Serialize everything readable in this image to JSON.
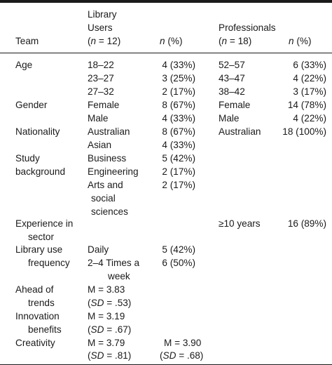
{
  "header": {
    "team": "Team",
    "library_users": [
      "Library",
      "Users"
    ],
    "library_n_open": "(",
    "library_n_italic": "n",
    "library_n_rest": " = 12)",
    "n_pct_italic": "n",
    "n_pct_rest": " (%)",
    "professionals": "Professionals",
    "prof_n_open": "(",
    "prof_n_italic": "n",
    "prof_n_rest": " = 18)",
    "n_pct2_italic": "n",
    "n_pct2_rest": " (%)"
  },
  "rows": {
    "age": {
      "label": "Age",
      "lib": [
        [
          "18–22",
          "4 (33%)"
        ],
        [
          "23–27",
          "3 (25%)"
        ],
        [
          "27–32",
          "2 (17%)"
        ]
      ],
      "prof": [
        [
          "52–57",
          "6 (33%)"
        ],
        [
          "43–47",
          "4 (22%)"
        ],
        [
          "38–42",
          "3 (17%)"
        ]
      ]
    },
    "gender": {
      "label": "Gender",
      "lib": [
        [
          "Female",
          "8 (67%)"
        ],
        [
          "Male",
          "4 (33%)"
        ]
      ],
      "prof": [
        [
          "Female",
          "14 (78%)"
        ],
        [
          "Male",
          "4 (22%)"
        ]
      ]
    },
    "nationality": {
      "label": "Nationality",
      "lib": [
        [
          "Australian",
          "8 (67%)"
        ],
        [
          "Asian",
          "4 (33%)"
        ]
      ],
      "prof": [
        [
          "Australian",
          "18 (100%)"
        ]
      ]
    },
    "study": {
      "label": [
        "Study",
        "background"
      ],
      "lib": [
        [
          "Business",
          "5 (42%)"
        ],
        [
          "Engineering",
          "2 (17%)"
        ]
      ],
      "arts": [
        "Arts and",
        "social",
        "sciences"
      ],
      "arts_value": "2 (17%)"
    },
    "experience": {
      "label": [
        "Experience in",
        "sector"
      ],
      "prof_cat": "≥10 years",
      "prof_val": "16 (89%)"
    },
    "library_use": {
      "label": [
        "Library use",
        "frequency"
      ],
      "daily": "Daily",
      "daily_val": "5 (42%)",
      "times": [
        "2–4 Times a",
        "week"
      ],
      "times_val": "6 (50%)"
    },
    "ahead": {
      "label": [
        "Ahead of",
        "trends"
      ],
      "mean": "M = 3.83",
      "sd_italic": "SD",
      "sd_rest": " = .53)"
    },
    "innovation": {
      "label": [
        "Innovation",
        "benefits"
      ],
      "mean": "M = 3.19",
      "sd_italic": "SD",
      "sd_rest": " = .67)"
    },
    "creativity": {
      "label": "Creativity",
      "mean": "M = 3.79",
      "sd_italic": "SD",
      "sd_rest": " = .81)",
      "mean2": "M = 3.90",
      "sd2_italic": "SD",
      "sd2_rest": " = .68)"
    }
  }
}
